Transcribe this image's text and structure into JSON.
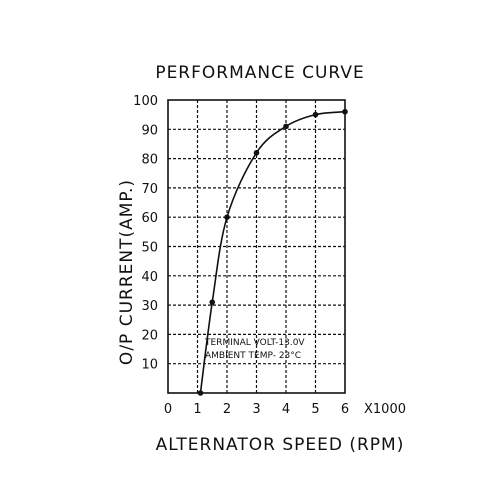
{
  "chart_data": {
    "type": "line",
    "title": "PERFORMANCE CURVE",
    "xlabel": "ALTERNATOR SPEED (RPM)",
    "ylabel": "O/P CURRENT(AMP.)",
    "x_multiplier_label": "X1000",
    "xlim": [
      0,
      6
    ],
    "ylim": [
      0,
      100
    ],
    "x_ticks": [
      "0",
      "1",
      "2",
      "3",
      "4",
      "5",
      "6"
    ],
    "y_ticks": [
      "10",
      "20",
      "30",
      "40",
      "50",
      "60",
      "70",
      "80",
      "90",
      "100"
    ],
    "grid": true,
    "annotations": [
      "TERMINAL VOLT-13.0V",
      "AMBIENT TEMP- 23°C"
    ],
    "series": [
      {
        "x": [
          1.1,
          1.5,
          2.0,
          3.0,
          4.0,
          5.0,
          6.0
        ],
        "y": [
          0,
          31,
          60,
          82,
          91,
          95,
          96
        ]
      }
    ]
  }
}
